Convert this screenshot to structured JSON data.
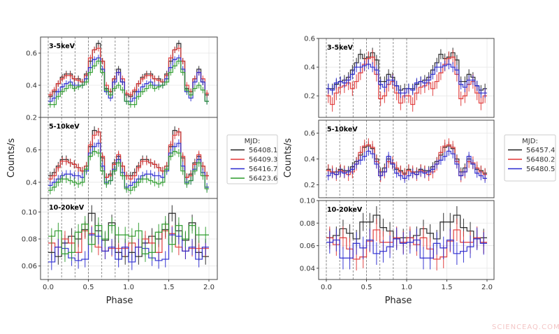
{
  "chart_data": [
    {
      "type": "line",
      "step": true,
      "xlabel": "Phase",
      "ylabel": "Counts/s",
      "xlim": [
        0,
        2
      ],
      "xtick_labels": [
        "0.0",
        "0.5",
        "1.0",
        "1.5",
        "2.0"
      ],
      "cycles_shown": 2,
      "dashed_phase_lines": [
        0,
        0.1667,
        0.3333,
        0.5,
        0.6667,
        0.8333,
        1.0
      ],
      "grid": true,
      "legend": {
        "title": "MJD:",
        "placement": "right",
        "entries": [
          "56408.1",
          "56409.3",
          "56416.7",
          "56423.6"
        ]
      },
      "panels": [
        {
          "label": "3-5keV",
          "ylim": [
            0.2,
            0.7
          ],
          "yticks": [
            0.2,
            0.4,
            0.6
          ],
          "ytick_labels": [
            "0.2",
            "0.4",
            "0.6"
          ],
          "bins_per_cycle": 20,
          "series": [
            {
              "name": "56408.1",
              "color": "#222222",
              "err": 0.02,
              "values": [
                0.33,
                0.36,
                0.41,
                0.45,
                0.47,
                0.47,
                0.44,
                0.44,
                0.42,
                0.47,
                0.55,
                0.62,
                0.66,
                0.55,
                0.38,
                0.36,
                0.44,
                0.5,
                0.42,
                0.34
              ]
            },
            {
              "name": "56409.3",
              "color": "#e03535",
              "err": 0.02,
              "values": [
                0.34,
                0.37,
                0.41,
                0.44,
                0.46,
                0.46,
                0.44,
                0.43,
                0.42,
                0.46,
                0.57,
                0.62,
                0.63,
                0.55,
                0.4,
                0.36,
                0.44,
                0.48,
                0.44,
                0.35
              ]
            },
            {
              "name": "56416.7",
              "color": "#2a2ad0",
              "err": 0.02,
              "values": [
                0.3,
                0.32,
                0.36,
                0.39,
                0.41,
                0.42,
                0.4,
                0.4,
                0.4,
                0.44,
                0.51,
                0.56,
                0.57,
                0.5,
                0.36,
                0.32,
                0.42,
                0.48,
                0.42,
                0.3
              ]
            },
            {
              "name": "56423.6",
              "color": "#2a9a2a",
              "err": 0.02,
              "values": [
                0.28,
                0.28,
                0.33,
                0.36,
                0.38,
                0.4,
                0.38,
                0.39,
                0.4,
                0.42,
                0.48,
                0.52,
                0.55,
                0.48,
                0.37,
                0.34,
                0.38,
                0.4,
                0.37,
                0.3
              ]
            }
          ]
        },
        {
          "label": "5-10keV",
          "ylim": [
            0.3,
            0.8
          ],
          "yticks": [
            0.4,
            0.6
          ],
          "ytick_labels": [
            "0.4",
            "0.6"
          ],
          "bins_per_cycle": 20,
          "series": [
            {
              "name": "56408.1",
              "color": "#222222",
              "err": 0.025,
              "values": [
                0.44,
                0.46,
                0.5,
                0.54,
                0.54,
                0.52,
                0.51,
                0.49,
                0.47,
                0.5,
                0.62,
                0.72,
                0.71,
                0.55,
                0.43,
                0.45,
                0.52,
                0.56,
                0.5,
                0.44
              ]
            },
            {
              "name": "56409.3",
              "color": "#e03535",
              "err": 0.025,
              "values": [
                0.42,
                0.44,
                0.49,
                0.53,
                0.53,
                0.52,
                0.51,
                0.49,
                0.47,
                0.5,
                0.63,
                0.69,
                0.71,
                0.56,
                0.43,
                0.44,
                0.51,
                0.57,
                0.5,
                0.44
              ]
            },
            {
              "name": "56416.7",
              "color": "#2a2ad0",
              "err": 0.025,
              "values": [
                0.38,
                0.4,
                0.42,
                0.44,
                0.45,
                0.45,
                0.44,
                0.44,
                0.43,
                0.47,
                0.58,
                0.62,
                0.64,
                0.5,
                0.4,
                0.41,
                0.48,
                0.54,
                0.46,
                0.37
              ]
            },
            {
              "name": "56423.6",
              "color": "#2a9a2a",
              "err": 0.025,
              "values": [
                0.35,
                0.37,
                0.4,
                0.42,
                0.42,
                0.41,
                0.4,
                0.39,
                0.4,
                0.48,
                0.56,
                0.59,
                0.58,
                0.47,
                0.39,
                0.41,
                0.47,
                0.52,
                0.44,
                0.36
              ]
            }
          ]
        },
        {
          "label": "10-20keV",
          "ylim": [
            0.05,
            0.11
          ],
          "yticks": [
            0.06,
            0.08,
            0.1
          ],
          "ytick_labels": [
            "0.06",
            "0.08",
            "0.10"
          ],
          "bins_per_cycle": 12,
          "series": [
            {
              "name": "56408.1",
              "color": "#222222",
              "err": 0.006,
              "values": [
                0.07,
                0.067,
                0.077,
                0.082,
                0.08,
                0.087,
                0.099,
                0.086,
                0.079,
                0.092,
                0.07,
                0.067
              ]
            },
            {
              "name": "56409.3",
              "color": "#e03535",
              "err": 0.006,
              "values": [
                0.077,
                0.074,
                0.08,
                0.077,
                0.07,
                0.086,
                0.084,
                0.074,
                0.071,
                0.073,
                0.073,
                0.073
              ]
            },
            {
              "name": "56416.7",
              "color": "#2a2ad0",
              "err": 0.006,
              "values": [
                0.063,
                0.074,
                0.073,
                0.066,
                0.064,
                0.065,
                0.083,
                0.082,
                0.071,
                0.074,
                0.065,
                0.074
              ]
            },
            {
              "name": "56423.6",
              "color": "#2a9a2a",
              "err": 0.006,
              "values": [
                0.082,
                0.086,
                0.069,
                0.07,
                0.085,
                0.091,
                0.076,
                0.09,
                0.08,
                0.09,
                0.083,
                0.083
              ]
            }
          ]
        }
      ]
    },
    {
      "type": "line",
      "step": true,
      "xlabel": "Phase",
      "ylabel": "Counts/s",
      "xlim": [
        0,
        2
      ],
      "xtick_labels": [
        "0.0",
        "0.5",
        "1.0",
        "1.5",
        "2.0"
      ],
      "cycles_shown": 2,
      "dashed_phase_lines": [
        0,
        0.1667,
        0.3333,
        0.5,
        0.6667,
        0.8333,
        1.0
      ],
      "grid": true,
      "legend": {
        "title": "MJD:",
        "placement": "right",
        "entries": [
          "56457.4",
          "56480.2",
          "56480.5"
        ]
      },
      "panels": [
        {
          "label": "3-5keV",
          "ylim": [
            0.05,
            0.6
          ],
          "yticks": [
            0.2,
            0.4,
            0.6
          ],
          "ytick_labels": [
            "0.2",
            "0.4",
            "0.6"
          ],
          "bins_per_cycle": 20,
          "series": [
            {
              "name": "56457.4",
              "color": "#222222",
              "err": 0.035,
              "values": [
                0.25,
                0.25,
                0.28,
                0.3,
                0.31,
                0.33,
                0.38,
                0.43,
                0.49,
                0.46,
                0.47,
                0.5,
                0.45,
                0.3,
                0.3,
                0.35,
                0.33,
                0.27,
                0.24,
                0.25
              ]
            },
            {
              "name": "56480.2",
              "color": "#e03535",
              "err": 0.05,
              "values": [
                0.2,
                0.14,
                0.22,
                0.26,
                0.27,
                0.29,
                0.25,
                0.3,
                0.36,
                0.42,
                0.46,
                0.47,
                0.35,
                0.18,
                0.2,
                0.28,
                0.3,
                0.22,
                0.15,
                0.2
              ]
            },
            {
              "name": "56480.5",
              "color": "#2a2ad0",
              "err": 0.035,
              "values": [
                0.25,
                0.24,
                0.29,
                0.3,
                0.29,
                0.31,
                0.35,
                0.4,
                0.4,
                0.41,
                0.42,
                0.4,
                0.38,
                0.28,
                0.26,
                0.31,
                0.31,
                0.27,
                0.22,
                0.22
              ]
            }
          ]
        },
        {
          "label": "5-10keV",
          "ylim": [
            0.1,
            0.7
          ],
          "yticks": [
            0.2,
            0.4,
            0.6
          ],
          "ytick_labels": [
            "0.2",
            "0.4",
            "0.6"
          ],
          "bins_per_cycle": 20,
          "series": [
            {
              "name": "56457.4",
              "color": "#222222",
              "err": 0.035,
              "values": [
                0.32,
                0.3,
                0.3,
                0.32,
                0.31,
                0.31,
                0.34,
                0.38,
                0.43,
                0.49,
                0.5,
                0.48,
                0.4,
                0.3,
                0.33,
                0.4,
                0.36,
                0.32,
                0.31,
                0.29
              ]
            },
            {
              "name": "56480.2",
              "color": "#e03535",
              "err": 0.05,
              "values": [
                0.31,
                0.3,
                0.28,
                0.31,
                0.3,
                0.28,
                0.3,
                0.36,
                0.45,
                0.5,
                0.51,
                0.49,
                0.38,
                0.27,
                0.3,
                0.38,
                0.37,
                0.33,
                0.3,
                0.28
              ]
            },
            {
              "name": "56480.5",
              "color": "#2a2ad0",
              "err": 0.035,
              "values": [
                0.27,
                0.29,
                0.28,
                0.3,
                0.29,
                0.3,
                0.32,
                0.36,
                0.39,
                0.42,
                0.46,
                0.44,
                0.36,
                0.27,
                0.3,
                0.42,
                0.36,
                0.29,
                0.27,
                0.25
              ]
            }
          ]
        },
        {
          "label": "10-20keV",
          "ylim": [
            0.03,
            0.1
          ],
          "yticks": [
            0.04,
            0.06,
            0.08,
            0.1
          ],
          "ytick_labels": [
            "0.04",
            "0.06",
            "0.08",
            "0.10"
          ],
          "bins_per_cycle": 12,
          "series": [
            {
              "name": "56457.4",
              "color": "#222222",
              "err": 0.008,
              "values": [
                0.067,
                0.069,
                0.075,
                0.071,
                0.066,
                0.081,
                0.081,
                0.087,
                0.076,
                0.073,
                0.066,
                0.067
              ]
            },
            {
              "name": "56480.2",
              "color": "#e03535",
              "err": 0.01,
              "values": [
                0.067,
                0.061,
                0.067,
                0.057,
                0.048,
                0.05,
                0.064,
                0.074,
                0.063,
                0.063,
                0.067,
                0.063
              ]
            },
            {
              "name": "56480.5",
              "color": "#2a2ad0",
              "err": 0.01,
              "values": [
                0.063,
                0.065,
                0.049,
                0.049,
                0.062,
                0.058,
                0.065,
                0.053,
                0.055,
                0.059,
                0.066,
                0.062
              ]
            }
          ]
        }
      ]
    }
  ],
  "watermark": "SCIENCEAQ.COM"
}
